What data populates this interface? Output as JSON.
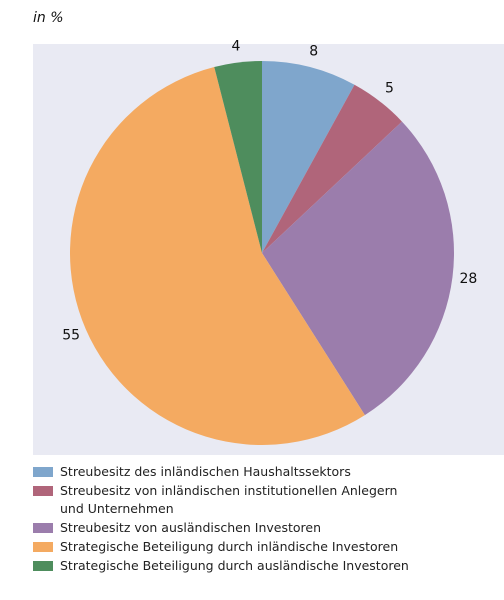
{
  "chart_data": {
    "type": "pie",
    "subtitle": "in %",
    "categories": [
      "Streubesitz des inländischen Haushaltssektors",
      "Streubesitz von inländischen institutionellen Anlegern und Unternehmen",
      "Streubesitz von ausländischen Investoren",
      "Strategische Beteiligung durch inländische Investoren",
      "Strategische Beteiligung durch ausländische Investoren"
    ],
    "values": [
      8,
      5,
      28,
      55,
      4
    ],
    "colors": [
      "#7fa6cc",
      "#b0657a",
      "#9b7dac",
      "#f4aa61",
      "#4e8d5d"
    ]
  }
}
